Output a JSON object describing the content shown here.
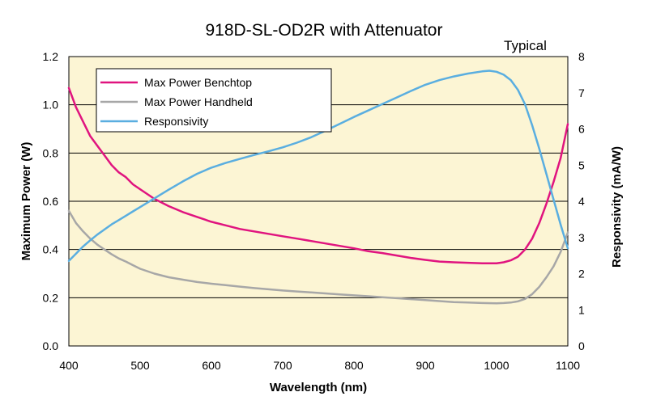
{
  "chart_data": {
    "type": "line",
    "title": "918D-SL-OD2R with Attenuator",
    "annotation": "Typical",
    "xlabel": "Wavelength (nm)",
    "ylabel_left": "Maximum Power (W)",
    "ylabel_right": "Responsivity  (mA/W)",
    "xlim": [
      400,
      1100
    ],
    "ylim_left": [
      0,
      1.2
    ],
    "ylim_right": [
      0,
      8
    ],
    "x_ticks": [
      "400",
      "500",
      "600",
      "700",
      "800",
      "900",
      "1000",
      "1100"
    ],
    "y_left_ticks": [
      "0.0",
      "0.2",
      "0.4",
      "0.6",
      "0.8",
      "1.0",
      "1.2"
    ],
    "y_right_ticks": [
      "0",
      "1",
      "2",
      "3",
      "4",
      "5",
      "6",
      "7",
      "8"
    ],
    "grid": "horizontal",
    "legend_position": "top-left",
    "plot_background": "#fcf5d4",
    "series": [
      {
        "name": "Max Power Benchtop",
        "axis": "left",
        "color": "#e0147f",
        "x": [
          400,
          410,
          420,
          430,
          440,
          450,
          460,
          470,
          480,
          490,
          500,
          520,
          540,
          560,
          580,
          600,
          620,
          640,
          660,
          680,
          700,
          720,
          740,
          760,
          780,
          800,
          820,
          840,
          860,
          880,
          900,
          920,
          940,
          960,
          980,
          1000,
          1010,
          1020,
          1030,
          1040,
          1050,
          1060,
          1070,
          1080,
          1090,
          1100
        ],
        "values": [
          1.07,
          0.99,
          0.93,
          0.87,
          0.83,
          0.79,
          0.75,
          0.72,
          0.7,
          0.67,
          0.65,
          0.61,
          0.58,
          0.555,
          0.535,
          0.515,
          0.5,
          0.485,
          0.475,
          0.465,
          0.455,
          0.445,
          0.435,
          0.425,
          0.415,
          0.405,
          0.393,
          0.385,
          0.375,
          0.365,
          0.357,
          0.35,
          0.347,
          0.345,
          0.343,
          0.343,
          0.347,
          0.355,
          0.37,
          0.4,
          0.445,
          0.51,
          0.59,
          0.68,
          0.78,
          0.92
        ]
      },
      {
        "name": "Max Power Handheld",
        "axis": "left",
        "color": "#a7a7a7",
        "x": [
          400,
          410,
          420,
          430,
          440,
          450,
          460,
          470,
          480,
          490,
          500,
          520,
          540,
          560,
          580,
          600,
          620,
          640,
          660,
          680,
          700,
          720,
          740,
          760,
          780,
          800,
          820,
          840,
          860,
          880,
          900,
          920,
          940,
          960,
          980,
          1000,
          1010,
          1020,
          1030,
          1040,
          1050,
          1060,
          1070,
          1080,
          1090,
          1100
        ],
        "values": [
          0.56,
          0.51,
          0.475,
          0.445,
          0.42,
          0.4,
          0.38,
          0.363,
          0.35,
          0.335,
          0.32,
          0.3,
          0.285,
          0.275,
          0.265,
          0.258,
          0.252,
          0.246,
          0.24,
          0.235,
          0.23,
          0.226,
          0.222,
          0.218,
          0.214,
          0.21,
          0.206,
          0.202,
          0.198,
          0.194,
          0.19,
          0.186,
          0.182,
          0.18,
          0.178,
          0.177,
          0.178,
          0.18,
          0.185,
          0.195,
          0.215,
          0.245,
          0.285,
          0.33,
          0.39,
          0.47
        ]
      },
      {
        "name": "Responsivity",
        "axis": "right",
        "color": "#5aaee0",
        "x": [
          400,
          410,
          420,
          430,
          440,
          450,
          460,
          470,
          480,
          490,
          500,
          520,
          540,
          560,
          580,
          600,
          620,
          640,
          660,
          680,
          700,
          720,
          740,
          760,
          780,
          800,
          820,
          840,
          860,
          880,
          900,
          920,
          940,
          960,
          980,
          990,
          1000,
          1010,
          1020,
          1030,
          1040,
          1050,
          1060,
          1070,
          1080,
          1090,
          1100
        ],
        "values": [
          2.35,
          2.55,
          2.75,
          2.92,
          3.08,
          3.22,
          3.36,
          3.48,
          3.6,
          3.72,
          3.84,
          4.08,
          4.32,
          4.55,
          4.76,
          4.93,
          5.06,
          5.17,
          5.28,
          5.38,
          5.49,
          5.62,
          5.77,
          5.95,
          6.14,
          6.33,
          6.51,
          6.69,
          6.87,
          7.05,
          7.22,
          7.35,
          7.45,
          7.53,
          7.59,
          7.61,
          7.58,
          7.5,
          7.35,
          7.08,
          6.68,
          6.1,
          5.45,
          4.75,
          4.05,
          3.35,
          2.7
        ]
      }
    ]
  }
}
